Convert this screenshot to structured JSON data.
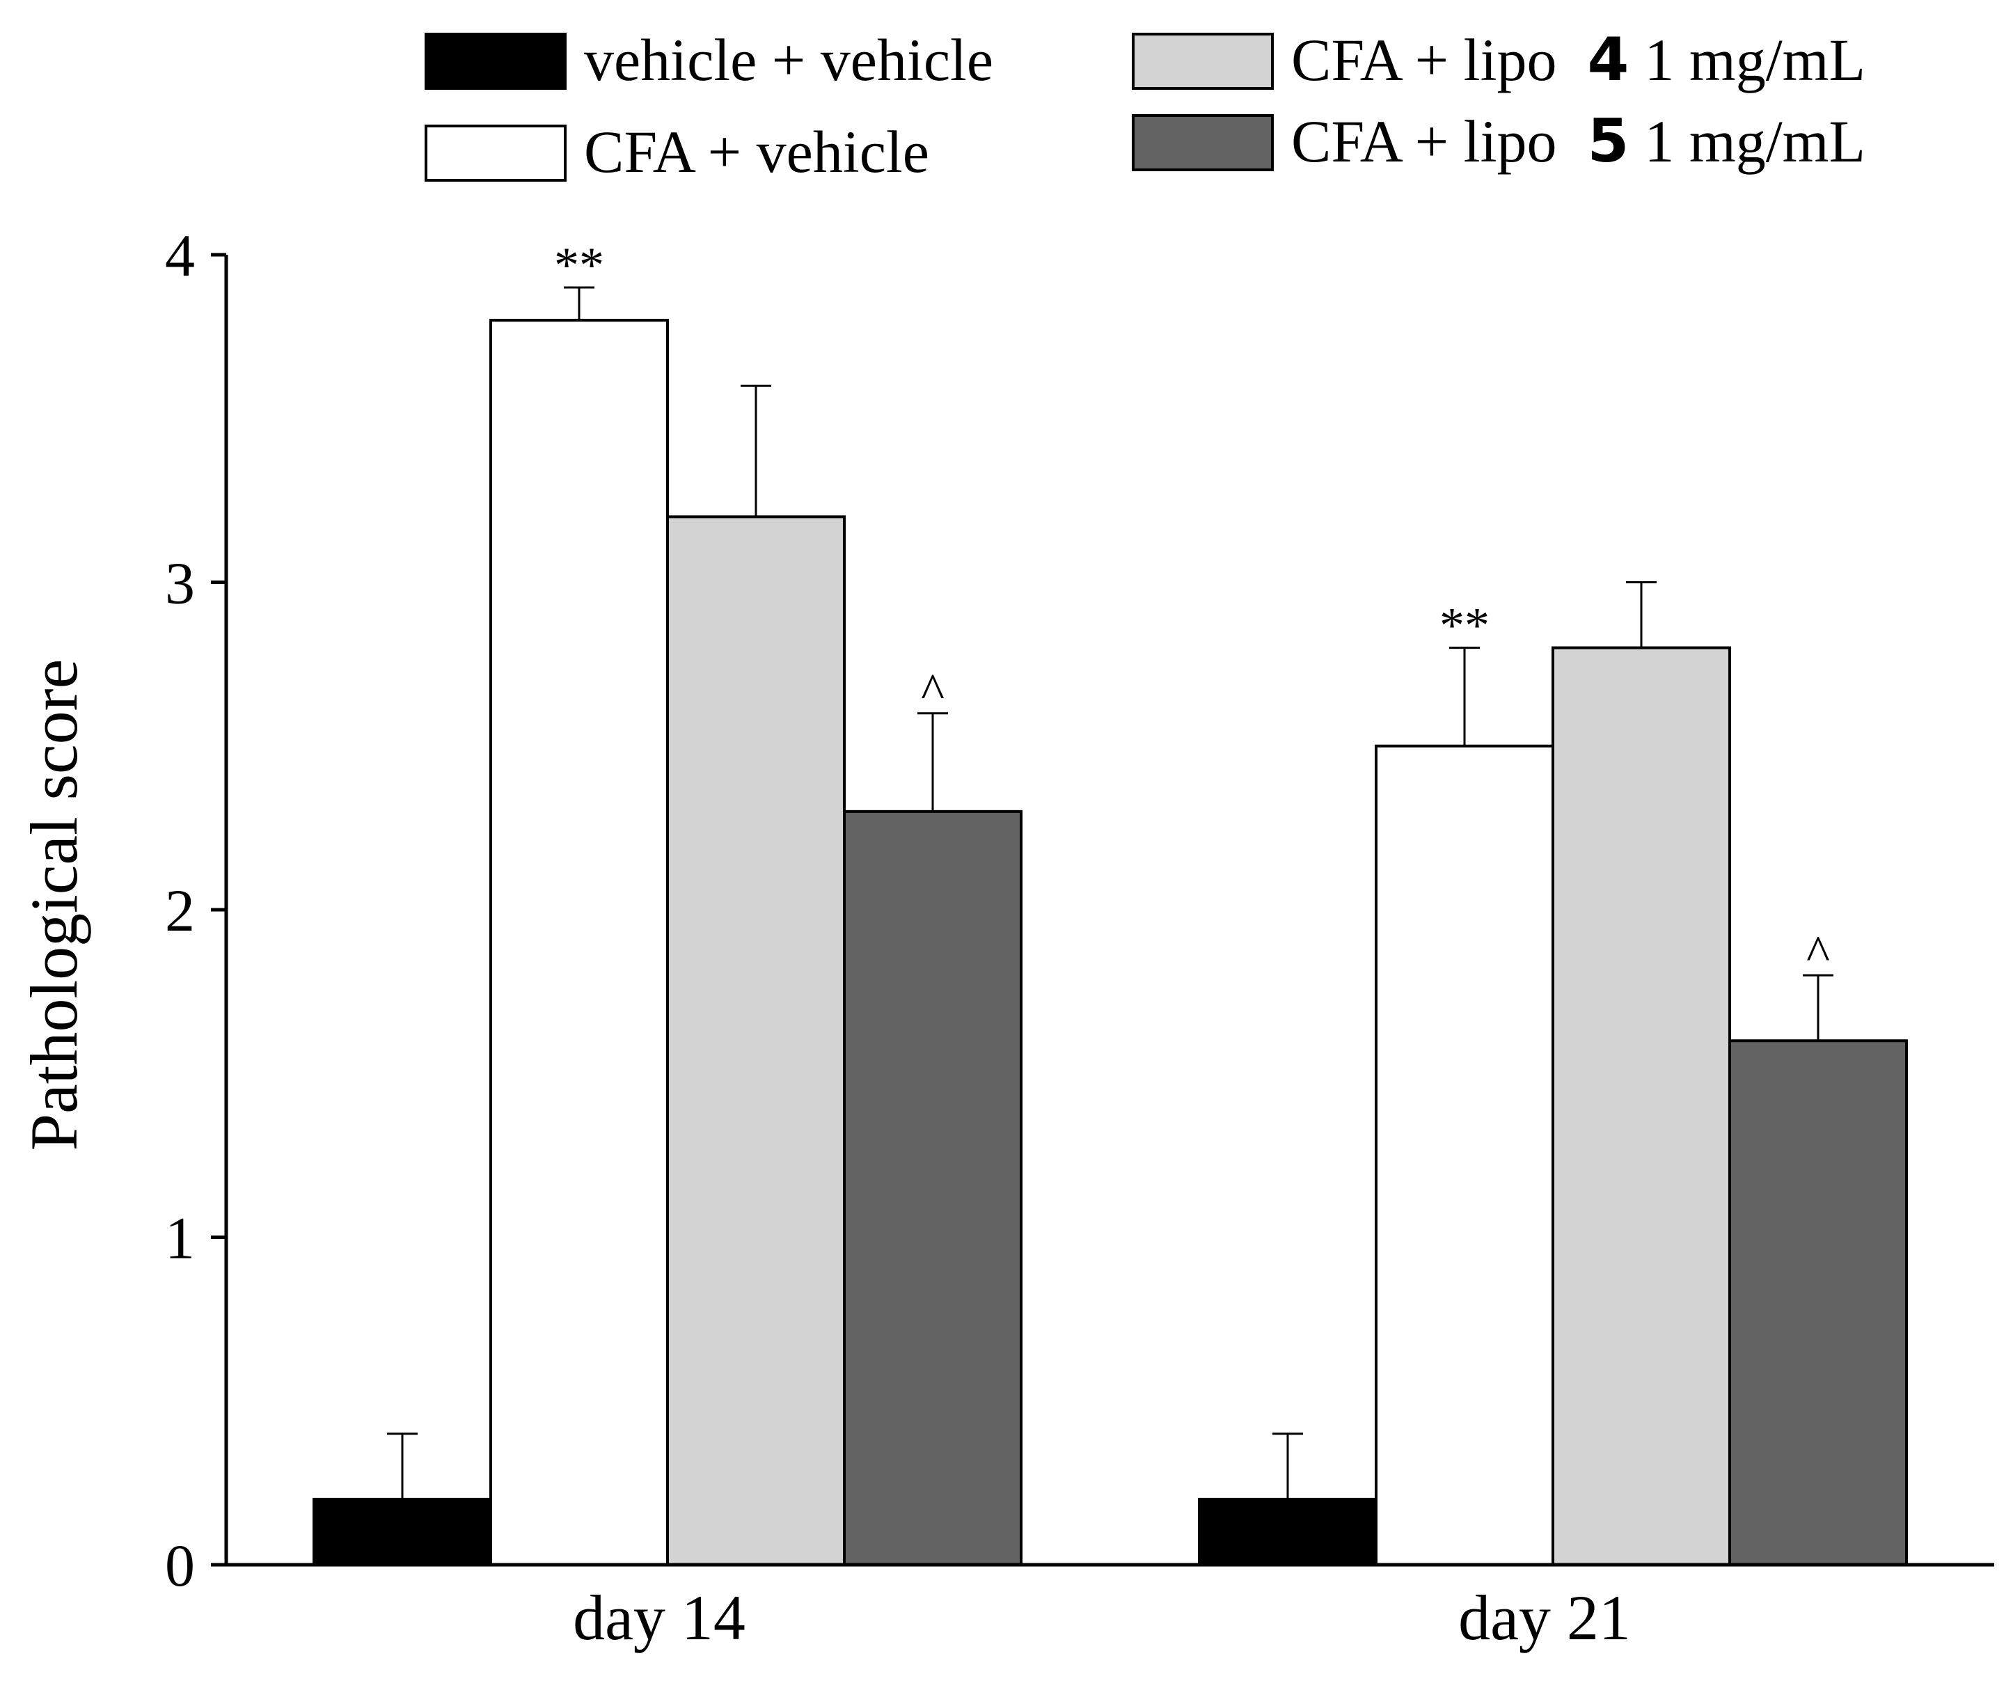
{
  "chart_data": {
    "type": "bar",
    "title": "",
    "xlabel": "",
    "ylabel": "Pathological score",
    "ylim": [
      0,
      4
    ],
    "yticks": [
      0,
      1,
      2,
      3,
      4
    ],
    "grid": false,
    "legend_position": "top",
    "categories": [
      "day 14",
      "day 21"
    ],
    "series": [
      {
        "name": "vehicle + vehicle",
        "legend": {
          "prefix": "vehicle + vehicle",
          "bold": "",
          "suffix": ""
        },
        "color": "#000000",
        "values": [
          0.2,
          0.2
        ],
        "errors": [
          0.2,
          0.2
        ],
        "annotations": [
          "",
          ""
        ]
      },
      {
        "name": "CFA + vehicle",
        "legend": {
          "prefix": "CFA + vehicle",
          "bold": "",
          "suffix": ""
        },
        "color": "#ffffff",
        "values": [
          3.8,
          2.5
        ],
        "errors": [
          0.1,
          0.3
        ],
        "annotations": [
          "**",
          "**"
        ]
      },
      {
        "name": "CFA + lipo 4 1 mg/mL",
        "legend": {
          "prefix": "CFA + lipo",
          "bold": "4",
          "suffix": "1 mg/mL"
        },
        "color": "#d3d3d3",
        "values": [
          3.2,
          2.8
        ],
        "errors": [
          0.4,
          0.2
        ],
        "annotations": [
          "",
          ""
        ]
      },
      {
        "name": "CFA + lipo 5 1 mg/mL",
        "legend": {
          "prefix": "CFA + lipo",
          "bold": "5",
          "suffix": "1 mg/mL"
        },
        "color": "#636363",
        "values": [
          2.3,
          1.6
        ],
        "errors": [
          0.3,
          0.2
        ],
        "annotations": [
          "^",
          "^"
        ]
      }
    ]
  }
}
